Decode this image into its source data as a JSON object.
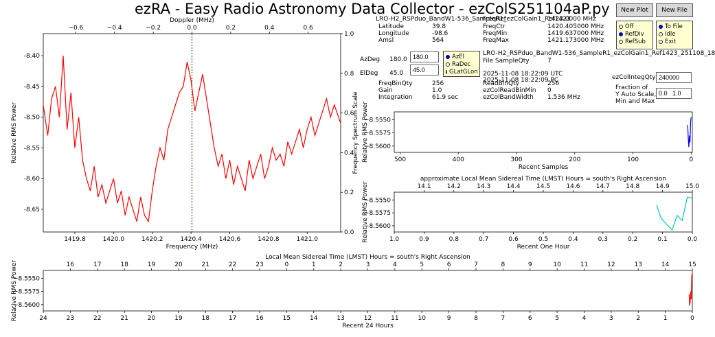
{
  "title": "ezRA - Easy Radio Astronomy Data Collector - ezColS251104aP.py",
  "buttons": {
    "new_plot": "New Plot",
    "new_file": "New File"
  },
  "plot_radios": [
    {
      "label": "Off",
      "selected": false
    },
    {
      "label": "RefDiv",
      "selected": true
    },
    {
      "label": "RefSub",
      "selected": false
    }
  ],
  "file_radios": [
    {
      "label": "To File",
      "selected": true
    },
    {
      "label": "Idle",
      "selected": false
    },
    {
      "label": "Exit",
      "selected": false
    }
  ],
  "coord_radios": [
    {
      "label": "AzEl",
      "selected": true
    },
    {
      "label": "RaDec",
      "selected": false
    },
    {
      "label": "GLatGLon",
      "selected": false
    }
  ],
  "station": {
    "name": "LRO-H2_RSPduo_BandW1-536_SampleR1_ezColGain1_Ref1423",
    "latitude_label": "Latitude",
    "latitude": "39.8",
    "longitude_label": "Longitude",
    "longitude": "-98.6",
    "amsl_label": "Amsl",
    "amsl": "564"
  },
  "freq": {
    "ref_label": "FreqRef",
    "ref_value": "1423.0000  MHz",
    "ctr_label": "FreqCtr",
    "ctr_value": "1420.405000  MHz",
    "min_label": "FreqMin",
    "min_value": "1419.637000  MHz",
    "max_label": "FreqMax",
    "max_value": "1421.173000  MHz"
  },
  "pointing": {
    "az_label": "AzDeg",
    "az_value": "180.0",
    "az_input": "180.0",
    "el_label": "ElDeg",
    "el_value": "45.0",
    "el_input": "45.0"
  },
  "file_info": {
    "filename": "LRO-H2_RSPduo_BandW1-536_SampleR1_ezColGain1_Ref1423_251108_18",
    "sample_qty_label": "File SampleQty",
    "sample_qty": "7",
    "date_utc": "2025-11-08  18:22:09  UTC",
    "date_pc": "2025-11-08  18:22:09  PC"
  },
  "settings": {
    "freqbinqty_label": "FreqBinQty",
    "freqbinqty": "256",
    "gain_label": "Gain",
    "gain": "1.0",
    "integration_label": "Integration",
    "integration": "61.9  sec",
    "readbinqty_label": "ReadBinQty",
    "readbinqty": "256",
    "readbinmin_label": "ezColReadBinMin",
    "readbinmin": "0",
    "bandwidth_label": "ezColBandWidth",
    "bandwidth": "1.536  MHz",
    "integqty_label": "ezColIntegQty",
    "integqty_input": "240000",
    "yauto_label_1": "Fraction of",
    "yauto_label_2": "Y Auto Scale,",
    "yauto_label_3": "Min and Max",
    "yauto_input": "0.0   1.0"
  },
  "colors": {
    "spectrum": "#ff0000",
    "samples": "#0000ff",
    "hour": "#00c8c8",
    "day": "#ff0000",
    "center_line": "#008000",
    "radio_bg": "#ffffd2"
  },
  "chart_data": [
    {
      "id": "spectrum",
      "type": "line",
      "xlabel": "Frequency (MHz)",
      "ylabel": "Relative RMS Power",
      "top_xlabel": "Doppler (MHz)",
      "right_ylabel": "Frequency Spectrum Scale",
      "xlim": [
        1419.637,
        1421.173
      ],
      "ylim": [
        -8.687,
        -8.364
      ],
      "xticks": [
        1419.8,
        1420.0,
        1420.2,
        1420.4,
        1420.6,
        1420.8,
        1421.0
      ],
      "xtick_labels": [
        "1419.8",
        "1420.0",
        "1420.2",
        "1420.4",
        "1420.6",
        "1420.8",
        "1421.0"
      ],
      "yticks": [
        -8.4,
        -8.45,
        -8.5,
        -8.55,
        -8.6,
        -8.65
      ],
      "ytick_labels": [
        "-8.40",
        "-8.45",
        "-8.50",
        "-8.55",
        "-8.60",
        "-8.65"
      ],
      "top_ticks": [
        -0.6,
        -0.4,
        -0.2,
        0.0,
        0.2,
        0.4,
        0.6
      ],
      "top_tick_labels": [
        "−0.6",
        "−0.4",
        "−0.2",
        "0.0",
        "0.2",
        "0.4",
        "0.6"
      ],
      "right_ticks": [
        0.0,
        0.2,
        0.4,
        0.6,
        0.8,
        1.0
      ],
      "right_tick_labels": [
        "0.0",
        "0.2",
        "0.4",
        "0.6",
        "0.8",
        "1.0"
      ],
      "center_freq": 1420.405,
      "series": [
        {
          "x": [
            1419.637,
            1419.66,
            1419.68,
            1419.7,
            1419.72,
            1419.74,
            1419.76,
            1419.78,
            1419.8,
            1419.82,
            1419.84,
            1419.86,
            1419.88,
            1419.9,
            1419.92,
            1419.94,
            1419.96,
            1419.98,
            1420.0,
            1420.02,
            1420.04,
            1420.06,
            1420.08,
            1420.1,
            1420.12,
            1420.14,
            1420.16,
            1420.18,
            1420.2,
            1420.22,
            1420.24,
            1420.26,
            1420.28,
            1420.3,
            1420.32,
            1420.34,
            1420.36,
            1420.38,
            1420.4,
            1420.42,
            1420.44,
            1420.46,
            1420.48,
            1420.5,
            1420.52,
            1420.54,
            1420.56,
            1420.58,
            1420.6,
            1420.62,
            1420.64,
            1420.66,
            1420.68,
            1420.7,
            1420.72,
            1420.74,
            1420.76,
            1420.78,
            1420.8,
            1420.82,
            1420.84,
            1420.86,
            1420.88,
            1420.9,
            1420.92,
            1420.94,
            1420.96,
            1420.98,
            1421.0,
            1421.02,
            1421.04,
            1421.06,
            1421.08,
            1421.1,
            1421.12,
            1421.14,
            1421.173
          ],
          "y": [
            -8.48,
            -8.53,
            -8.47,
            -8.45,
            -8.5,
            -8.4,
            -8.52,
            -8.46,
            -8.55,
            -8.5,
            -8.57,
            -8.6,
            -8.62,
            -8.58,
            -8.63,
            -8.61,
            -8.64,
            -8.62,
            -8.6,
            -8.64,
            -8.62,
            -8.66,
            -8.63,
            -8.65,
            -8.67,
            -8.63,
            -8.66,
            -8.67,
            -8.62,
            -8.58,
            -8.55,
            -8.57,
            -8.52,
            -8.5,
            -8.48,
            -8.46,
            -8.45,
            -8.41,
            -8.44,
            -8.49,
            -8.46,
            -8.43,
            -8.47,
            -8.51,
            -8.55,
            -8.58,
            -8.56,
            -8.6,
            -8.57,
            -8.61,
            -8.58,
            -8.6,
            -8.62,
            -8.57,
            -8.6,
            -8.58,
            -8.56,
            -8.6,
            -8.58,
            -8.55,
            -8.57,
            -8.56,
            -8.58,
            -8.54,
            -8.56,
            -8.54,
            -8.52,
            -8.55,
            -8.52,
            -8.5,
            -8.53,
            -8.51,
            -8.49,
            -8.47,
            -8.5,
            -8.48,
            -8.51
          ]
        }
      ]
    },
    {
      "id": "recent-samples",
      "type": "line",
      "xlabel": "Recent Samples",
      "ylabel": "Relative RMS Power",
      "xlim": [
        510,
        -2
      ],
      "ylim": [
        -8.5612,
        -8.5535
      ],
      "xticks": [
        500,
        400,
        300,
        200,
        100,
        0
      ],
      "xtick_labels": [
        "500",
        "400",
        "300",
        "200",
        "100",
        "0"
      ],
      "yticks": [
        -8.555,
        -8.5575,
        -8.56
      ],
      "ytick_labels": [
        "−8.5550",
        "−8.5575",
        "−8.5600"
      ],
      "series": [
        {
          "x": [
            6,
            5,
            4,
            3,
            2,
            1,
            0
          ],
          "y": [
            -8.556,
            -8.5585,
            -8.5602,
            -8.558,
            -8.5593,
            -8.5553,
            -8.5545
          ]
        }
      ]
    },
    {
      "id": "recent-hour",
      "type": "line",
      "xlabel": "Recent One Hour",
      "ylabel": "Relative RMS Power",
      "top_xlabel": "approximate Local Mean Sidereal Time (LMST) Hours = south's Right Ascension",
      "xlim": [
        1.0,
        0.0
      ],
      "ylim": [
        -8.5612,
        -8.5535
      ],
      "xticks": [
        1.0,
        0.9,
        0.8,
        0.7,
        0.6,
        0.5,
        0.4,
        0.3,
        0.2,
        0.1,
        0.0
      ],
      "xtick_labels": [
        "1.0",
        "0.9",
        "0.8",
        "0.7",
        "0.6",
        "0.5",
        "0.4",
        "0.3",
        "0.2",
        "0.1",
        "0.0"
      ],
      "top_ticks": [
        14.1,
        14.2,
        14.3,
        14.4,
        14.5,
        14.6,
        14.7,
        14.8,
        14.9,
        15.0
      ],
      "top_tick_labels": [
        "14.1",
        "14.2",
        "14.3",
        "14.4",
        "14.5",
        "14.6",
        "14.7",
        "14.8",
        "14.9",
        "15.0"
      ],
      "yticks": [
        -8.555,
        -8.5575,
        -8.56
      ],
      "ytick_labels": [
        "−8.5550",
        "−8.5575",
        "−8.5600"
      ],
      "series": [
        {
          "x": [
            0.12,
            0.105,
            0.085,
            0.068,
            0.051,
            0.034,
            0.017,
            0.002
          ],
          "y": [
            -8.556,
            -8.5585,
            -8.5598,
            -8.5608,
            -8.558,
            -8.559,
            -8.5545,
            -8.5546
          ]
        }
      ]
    },
    {
      "id": "recent-24h",
      "type": "line",
      "xlabel": "Recent 24 Hours",
      "ylabel": "Relative RMS Power",
      "top_xlabel": "Local Mean Sidereal Time (LMST) Hours = south's Right Ascension",
      "xlim": [
        24,
        0
      ],
      "ylim": [
        -8.5612,
        -8.5535
      ],
      "xticks": [
        24,
        23,
        22,
        21,
        20,
        19,
        18,
        17,
        16,
        15,
        14,
        13,
        12,
        11,
        10,
        9,
        8,
        7,
        6,
        5,
        4,
        3,
        2,
        1,
        0
      ],
      "xtick_labels": [
        "24",
        "23",
        "22",
        "21",
        "20",
        "19",
        "18",
        "17",
        "16",
        "15",
        "14",
        "13",
        "12",
        "11",
        "10",
        "9",
        "8",
        "7",
        "6",
        "5",
        "4",
        "3",
        "2",
        "1",
        "0"
      ],
      "top_ticks": [
        16,
        17,
        18,
        19,
        20,
        21,
        22,
        23,
        0,
        1,
        2,
        3,
        4,
        5,
        6,
        7,
        8,
        9,
        10,
        11,
        12,
        13,
        14,
        15
      ],
      "top_tick_labels": [
        "16",
        "17",
        "18",
        "19",
        "20",
        "21",
        "22",
        "23",
        "0",
        "1",
        "2",
        "3",
        "4",
        "5",
        "6",
        "7",
        "8",
        "9",
        "10",
        "11",
        "12",
        "13",
        "14",
        "15"
      ],
      "yticks": [
        -8.555,
        -8.5575,
        -8.56
      ],
      "ytick_labels": [
        "−8.5550",
        "−8.5575",
        "−8.5600"
      ],
      "series": [
        {
          "x": [
            0.12,
            0.1,
            0.08,
            0.06,
            0.04,
            0.02,
            0.0
          ],
          "y": [
            -8.558,
            -8.5602,
            -8.5595,
            -8.5575,
            -8.559,
            -8.5545,
            -8.554
          ]
        }
      ]
    }
  ]
}
